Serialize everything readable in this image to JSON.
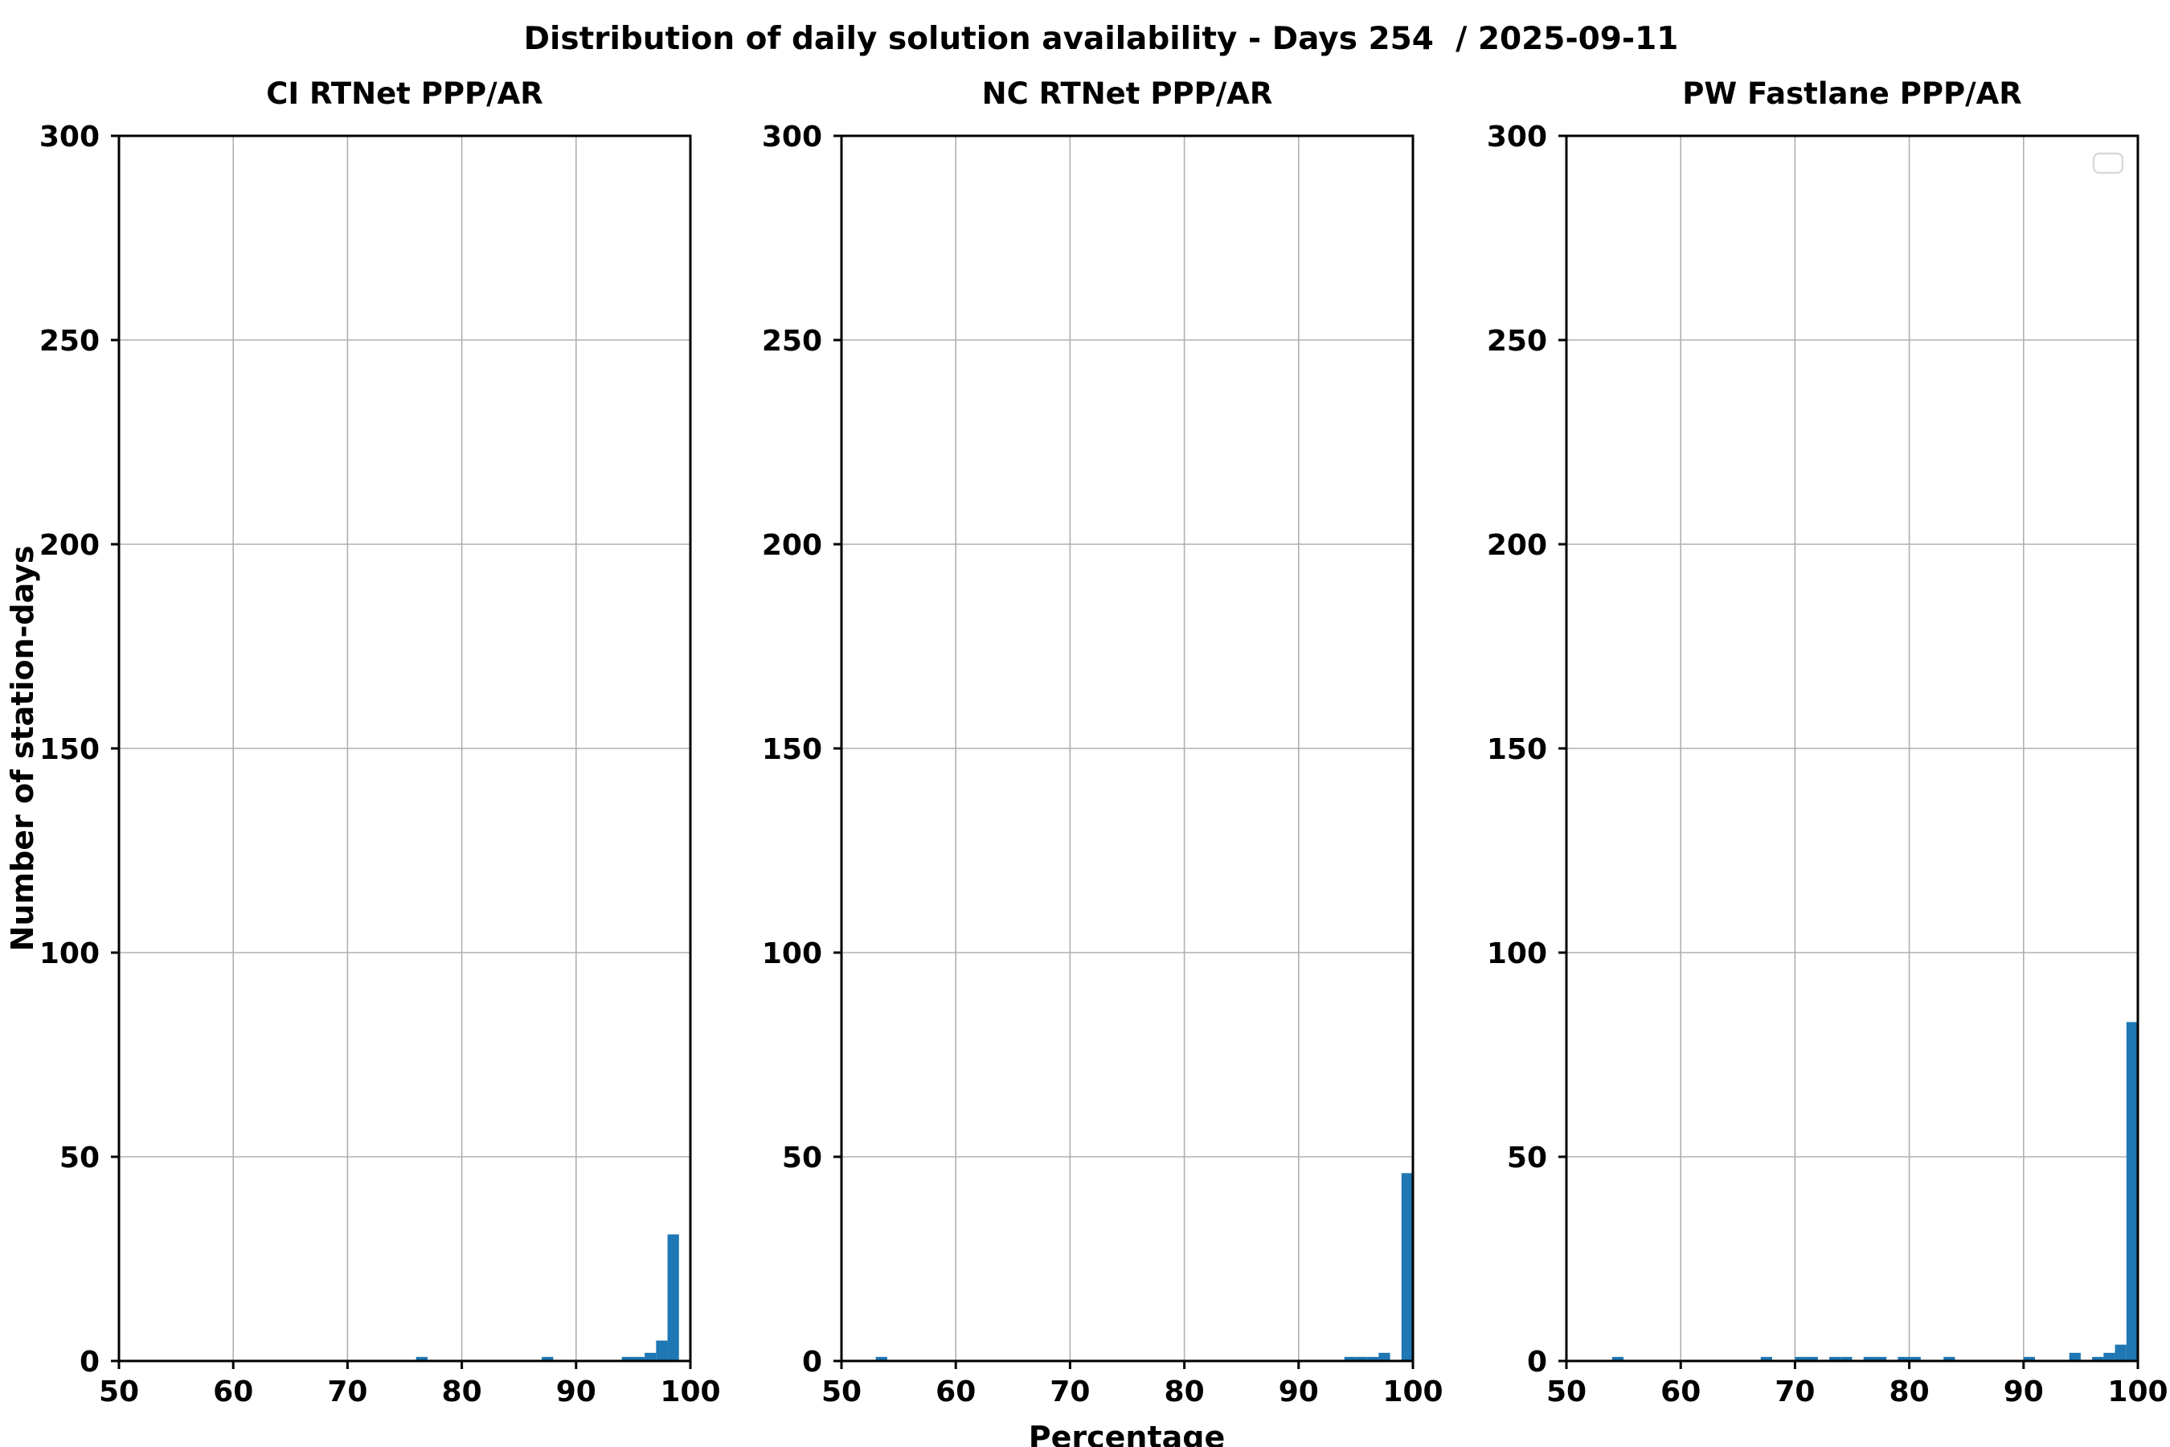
{
  "figure": {
    "title": "Distribution of daily solution availability - Days 254  / 2025-09-11",
    "xlabel": "Percentage",
    "ylabel": "Number of station-days",
    "background": "#ffffff"
  },
  "chart_data": [
    {
      "type": "bar",
      "title": "CI RTNet PPP/AR",
      "xlabel": "Percentage",
      "ylabel": "Number of station-days",
      "xlim": [
        50,
        100
      ],
      "ylim": [
        0,
        300
      ],
      "xticks": [
        50,
        60,
        70,
        80,
        90,
        100
      ],
      "yticks": [
        0,
        50,
        100,
        150,
        200,
        250,
        300
      ],
      "grid": true,
      "grid_color": "#b0b0b0",
      "bar_color": "#1f77b4",
      "bin_width": 1,
      "legend_empty": false,
      "bins": [
        {
          "x": 76,
          "count": 1
        },
        {
          "x": 87,
          "count": 1
        },
        {
          "x": 94,
          "count": 1
        },
        {
          "x": 95,
          "count": 1
        },
        {
          "x": 96,
          "count": 2
        },
        {
          "x": 97,
          "count": 5
        },
        {
          "x": 98,
          "count": 31
        }
      ]
    },
    {
      "type": "bar",
      "title": "NC RTNet PPP/AR",
      "xlabel": "Percentage",
      "ylabel": "Number of station-days",
      "xlim": [
        50,
        100
      ],
      "ylim": [
        0,
        300
      ],
      "xticks": [
        50,
        60,
        70,
        80,
        90,
        100
      ],
      "yticks": [
        0,
        50,
        100,
        150,
        200,
        250,
        300
      ],
      "grid": true,
      "grid_color": "#b0b0b0",
      "bar_color": "#1f77b4",
      "bin_width": 1,
      "legend_empty": false,
      "bins": [
        {
          "x": 53,
          "count": 1
        },
        {
          "x": 94,
          "count": 1
        },
        {
          "x": 95,
          "count": 1
        },
        {
          "x": 96,
          "count": 1
        },
        {
          "x": 97,
          "count": 2
        },
        {
          "x": 99,
          "count": 46
        }
      ]
    },
    {
      "type": "bar",
      "title": "PW Fastlane PPP/AR",
      "xlabel": "Percentage",
      "ylabel": "Number of station-days",
      "xlim": [
        50,
        100
      ],
      "ylim": [
        0,
        300
      ],
      "xticks": [
        50,
        60,
        70,
        80,
        90,
        100
      ],
      "yticks": [
        0,
        50,
        100,
        150,
        200,
        250,
        300
      ],
      "grid": true,
      "grid_color": "#b0b0b0",
      "bar_color": "#1f77b4",
      "bin_width": 1,
      "legend_empty": true,
      "bins": [
        {
          "x": 54,
          "count": 1
        },
        {
          "x": 67,
          "count": 1
        },
        {
          "x": 70,
          "count": 1
        },
        {
          "x": 71,
          "count": 1
        },
        {
          "x": 73,
          "count": 1
        },
        {
          "x": 74,
          "count": 1
        },
        {
          "x": 76,
          "count": 1
        },
        {
          "x": 77,
          "count": 1
        },
        {
          "x": 79,
          "count": 1
        },
        {
          "x": 80,
          "count": 1
        },
        {
          "x": 83,
          "count": 1
        },
        {
          "x": 90,
          "count": 1
        },
        {
          "x": 94,
          "count": 2
        },
        {
          "x": 96,
          "count": 1
        },
        {
          "x": 97,
          "count": 2
        },
        {
          "x": 98,
          "count": 4
        },
        {
          "x": 99,
          "count": 83
        }
      ]
    }
  ]
}
